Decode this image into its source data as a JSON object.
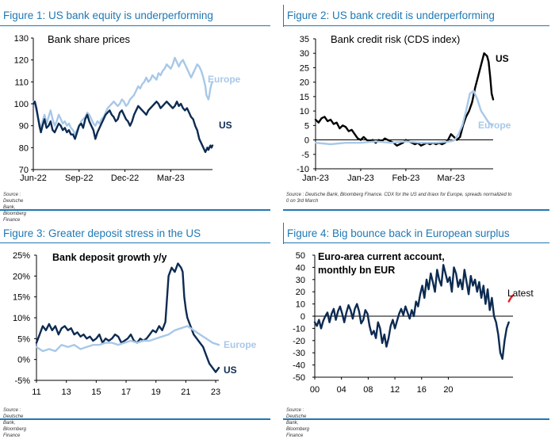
{
  "panels": [
    {
      "title": "Figure 1: US bank equity is underperforming",
      "source": "Source : Deutsche Bank, Bloomberg Finance",
      "source2": ""
    },
    {
      "title": "Figure 2: US bank credit is underperforming",
      "source": "Source : Deutsche Bank, Bloomberg Finance. CDX for the US and itraxx for Europe, spreads normalized to",
      "source2": "0 on 3rd March"
    },
    {
      "title": "Figure 3: Greater deposit stress in the US",
      "source": "Source : Deutsche Bank, Bloomberg Finance",
      "source2": ""
    },
    {
      "title": "Figure 4: Big bounce back in European surplus",
      "source": "Source : Deutsche Bank, Bloomberg Finance",
      "source2": ""
    }
  ],
  "colors": {
    "accent": "#1f78b4",
    "us": "#0d2b52",
    "europe": "#a8c8e8",
    "black": "#000000",
    "latest": "#e8202a"
  },
  "chart_data": [
    {
      "type": "line",
      "title": "Bank share prices",
      "xticks": [
        "Jun-22",
        "Sep-22",
        "Dec-22",
        "Mar-23"
      ],
      "yticks": [
        "130",
        "120",
        "110",
        "100",
        "90",
        "80",
        "70"
      ],
      "ylim": [
        70,
        130
      ],
      "series": [
        {
          "name": "Europe",
          "color": "#a8c8e8",
          "x": [
            0,
            3,
            6,
            9,
            12,
            15,
            18,
            22,
            26,
            30,
            34,
            38,
            42,
            46,
            50,
            54,
            58,
            62,
            66,
            70,
            74,
            78,
            82,
            86,
            90,
            94,
            98,
            102,
            106,
            110,
            114,
            118,
            122,
            126,
            130,
            134,
            138,
            142,
            146,
            150,
            154,
            158,
            162,
            166,
            170,
            174,
            178,
            182,
            186,
            190,
            194,
            198,
            202,
            206,
            210,
            214,
            218,
            222,
            226,
            230,
            234,
            238,
            242,
            246,
            250,
            254,
            258,
            262,
            266,
            270,
            274,
            278,
            282,
            286,
            290,
            294,
            298,
            302,
            306,
            310,
            314,
            318,
            322,
            326,
            330,
            334,
            338,
            340,
            342,
            344,
            346,
            348,
            350,
            352
          ],
          "y": [
            101,
            100,
            97,
            94,
            91,
            88,
            92,
            95,
            91,
            94,
            97,
            93,
            90,
            92,
            95,
            93,
            91,
            92,
            90,
            91,
            89,
            88,
            86,
            88,
            90,
            92,
            93,
            94,
            96,
            95,
            93,
            91,
            90,
            92,
            91,
            93,
            94,
            96,
            98,
            99,
            100,
            101,
            100,
            99,
            100,
            102,
            101,
            99,
            100,
            102,
            103,
            104,
            106,
            108,
            107,
            109,
            110,
            112,
            110,
            111,
            113,
            112,
            111,
            114,
            113,
            115,
            116,
            118,
            117,
            116,
            118,
            121,
            119,
            117,
            119,
            120,
            118,
            116,
            114,
            112,
            114,
            116,
            118,
            117,
            115,
            112,
            108,
            104,
            103,
            102,
            104,
            107,
            109,
            110
          ]
        },
        {
          "name": "US",
          "color": "#0d2b52",
          "x": [
            0,
            3,
            6,
            9,
            12,
            15,
            18,
            22,
            26,
            30,
            34,
            38,
            42,
            46,
            50,
            54,
            58,
            62,
            66,
            70,
            74,
            78,
            82,
            86,
            90,
            94,
            98,
            102,
            106,
            110,
            114,
            118,
            122,
            126,
            130,
            134,
            138,
            142,
            146,
            150,
            154,
            158,
            162,
            166,
            170,
            174,
            178,
            182,
            186,
            190,
            194,
            198,
            202,
            206,
            210,
            214,
            218,
            222,
            226,
            230,
            234,
            238,
            242,
            246,
            250,
            254,
            258,
            262,
            266,
            270,
            274,
            278,
            282,
            286,
            290,
            294,
            298,
            302,
            306,
            310,
            314,
            318,
            322,
            326,
            330,
            334,
            338,
            340,
            342,
            344,
            346,
            348,
            350,
            352
          ],
          "y": [
            100,
            101,
            98,
            94,
            90,
            87,
            90,
            93,
            89,
            90,
            92,
            88,
            87,
            89,
            91,
            90,
            88,
            89,
            87,
            88,
            86,
            86,
            84,
            87,
            90,
            91,
            89,
            93,
            95,
            92,
            90,
            88,
            84,
            87,
            89,
            91,
            93,
            95,
            96,
            97,
            95,
            94,
            92,
            93,
            96,
            97,
            95,
            93,
            92,
            90,
            92,
            95,
            97,
            99,
            98,
            97,
            96,
            95,
            97,
            98,
            99,
            100,
            101,
            100,
            98,
            99,
            100,
            101,
            100,
            99,
            98,
            99,
            101,
            99,
            100,
            98,
            97,
            98,
            96,
            94,
            93,
            90,
            88,
            84,
            82,
            80,
            78,
            79,
            80,
            79,
            80,
            81,
            80,
            81
          ]
        }
      ],
      "labels": {
        "europe": "Europe",
        "us": "US"
      }
    },
    {
      "type": "line",
      "title": "Bank credit risk (CDS index)",
      "xticks": [
        "Jan-23",
        "Jan-23",
        "Feb-23",
        "Mar-23"
      ],
      "yticks": [
        "35",
        "30",
        "25",
        "20",
        "15",
        "10",
        "5",
        "0",
        "-5",
        "-10"
      ],
      "ylim": [
        -10,
        35
      ],
      "series": [
        {
          "name": "US",
          "color": "#000000",
          "x": [
            0,
            4,
            8,
            12,
            16,
            20,
            24,
            28,
            32,
            36,
            40,
            44,
            48,
            52,
            56,
            60,
            64,
            68,
            72,
            76,
            80,
            84,
            88,
            92,
            96,
            100,
            104,
            108,
            112,
            116,
            120,
            124,
            128,
            132,
            136,
            140,
            144,
            148,
            152,
            156,
            160,
            164,
            168,
            172,
            176,
            180,
            184,
            188,
            192,
            196,
            200,
            204,
            208,
            212,
            216,
            220,
            224,
            228,
            230,
            232,
            234,
            236
          ],
          "y": [
            7,
            6,
            7.5,
            8,
            6.5,
            7,
            5.5,
            6,
            4,
            5,
            4.5,
            3,
            3.5,
            2,
            0.5,
            0,
            1,
            0,
            -0.5,
            0,
            -1,
            0,
            -0.5,
            0.5,
            0,
            -0.5,
            -1,
            -2,
            -1.5,
            -1,
            0,
            -0.5,
            -1,
            -1.5,
            -1,
            -2,
            -1.5,
            -1,
            -1.5,
            -1,
            -1.5,
            -1,
            -1.5,
            -1,
            0,
            2,
            1,
            0,
            1,
            5,
            8,
            10,
            13,
            18,
            22,
            26,
            30,
            29,
            27,
            22,
            16,
            14
          ]
        },
        {
          "name": "Europe",
          "color": "#a8c8e8",
          "x": [
            0,
            20,
            40,
            60,
            80,
            100,
            120,
            140,
            160,
            180,
            185,
            190,
            195,
            200,
            205,
            210,
            215,
            220,
            225,
            230,
            235
          ],
          "y": [
            -1,
            -1.5,
            -1,
            -1,
            -0.5,
            -1,
            -0.5,
            -1,
            -1,
            -0.5,
            0,
            2,
            5,
            10,
            16,
            17,
            14,
            10,
            8,
            6,
            5
          ]
        }
      ],
      "labels": {
        "us": "US",
        "europe": "Europe"
      }
    },
    {
      "type": "line",
      "title": "Bank deposit growth y/y",
      "xticks": [
        "11",
        "13",
        "15",
        "17",
        "19",
        "21",
        "23"
      ],
      "yticks": [
        "25%",
        "20%",
        "15%",
        "10%",
        "5%",
        "0%",
        "-5%"
      ],
      "ylim": [
        -5,
        25
      ],
      "series": [
        {
          "name": "US",
          "color": "#0d2b52",
          "x": [
            0,
            4,
            8,
            12,
            16,
            20,
            24,
            28,
            32,
            36,
            40,
            44,
            48,
            52,
            56,
            60,
            64,
            68,
            72,
            76,
            80,
            84,
            88,
            92,
            96,
            100,
            104,
            108,
            112,
            116,
            120,
            124,
            128,
            132,
            136,
            140,
            144,
            148,
            152,
            156,
            160,
            164,
            168,
            172,
            176,
            180,
            184,
            186,
            188,
            190,
            192,
            194,
            196,
            198,
            200,
            204,
            208,
            212,
            216,
            220,
            224,
            228,
            232
          ],
          "y": [
            4,
            6,
            8,
            7,
            8.5,
            7,
            8,
            6,
            7.5,
            8,
            7,
            7.5,
            6,
            6.5,
            5.5,
            6,
            5,
            5.5,
            4.5,
            5,
            6,
            4,
            5,
            4.5,
            5,
            6,
            5.5,
            4,
            4.5,
            5,
            6,
            4.5,
            4,
            5,
            4.5,
            5,
            6,
            7,
            6.5,
            8,
            7,
            9,
            20,
            22,
            21,
            23,
            22,
            21,
            15,
            12,
            10,
            9,
            8,
            7,
            6,
            5,
            4,
            3,
            1,
            -1,
            -2,
            -3,
            -2
          ]
        },
        {
          "name": "Europe",
          "color": "#a8c8e8",
          "x": [
            0,
            8,
            16,
            24,
            32,
            40,
            48,
            56,
            64,
            72,
            80,
            88,
            96,
            104,
            112,
            120,
            128,
            136,
            144,
            152,
            160,
            168,
            176,
            184,
            192,
            200,
            208,
            216,
            224,
            232
          ],
          "y": [
            3,
            2,
            2.5,
            2,
            3.5,
            3,
            3.5,
            2.5,
            3,
            3.5,
            3.5,
            4,
            4,
            3.5,
            4,
            4.5,
            4,
            4.5,
            4.5,
            5,
            5.5,
            6,
            7,
            7.5,
            8,
            7,
            6,
            5,
            4,
            3.5
          ]
        }
      ],
      "labels": {
        "europe": "Europe",
        "us": "US"
      }
    },
    {
      "type": "line",
      "title": "Euro-area current account, monthly bn EUR",
      "title_lines": [
        "Euro-area current account,",
        "monthly bn EUR"
      ],
      "xticks": [
        "00",
        "04",
        "08",
        "12",
        "16",
        "20"
      ],
      "yticks": [
        "50",
        "40",
        "30",
        "20",
        "10",
        "0",
        "-10",
        "-20",
        "-30",
        "-40",
        "-50"
      ],
      "ylim": [
        -50,
        50
      ],
      "series": [
        {
          "name": "Current account",
          "color": "#0d2b52",
          "x": [
            0,
            3,
            6,
            9,
            12,
            15,
            18,
            21,
            24,
            27,
            30,
            33,
            36,
            39,
            42,
            45,
            48,
            51,
            54,
            57,
            60,
            63,
            66,
            69,
            72,
            75,
            78,
            81,
            84,
            87,
            90,
            93,
            96,
            99,
            102,
            105,
            108,
            111,
            114,
            117,
            120,
            123,
            126,
            129,
            132,
            135,
            138,
            141,
            144,
            147,
            150,
            153,
            156,
            159,
            162,
            165,
            168,
            171,
            174,
            177,
            180,
            183,
            186,
            189,
            192,
            195,
            198,
            201,
            204,
            207,
            210,
            213,
            216,
            219,
            222,
            225,
            228,
            231,
            234,
            237,
            240,
            243,
            246,
            249,
            252,
            255,
            258,
            261,
            264,
            267,
            270,
            273,
            276
          ],
          "y": [
            -5,
            -8,
            -3,
            -10,
            -4,
            0,
            3,
            -5,
            2,
            6,
            -3,
            4,
            8,
            2,
            -5,
            3,
            9,
            5,
            -2,
            6,
            10,
            4,
            -6,
            -3,
            5,
            2,
            -8,
            -15,
            -12,
            -18,
            -5,
            -10,
            -22,
            -15,
            -25,
            -18,
            -8,
            -3,
            -10,
            -4,
            2,
            6,
            1,
            8,
            3,
            -2,
            5,
            0,
            12,
            8,
            18,
            25,
            15,
            30,
            22,
            35,
            28,
            20,
            38,
            30,
            25,
            42,
            35,
            28,
            32,
            20,
            40,
            35,
            24,
            30,
            22,
            38,
            28,
            18,
            33,
            25,
            30,
            20,
            28,
            15,
            25,
            10,
            22,
            5,
            15,
            0,
            -5,
            -15,
            -30,
            -35,
            -20,
            -10,
            -5
          ]
        },
        {
          "name": "Latest",
          "color": "#e8202a",
          "x": [
            276,
            279,
            282
          ],
          "y": [
            12,
            15,
            17
          ]
        }
      ],
      "labels": {
        "latest": "Latest"
      }
    }
  ]
}
